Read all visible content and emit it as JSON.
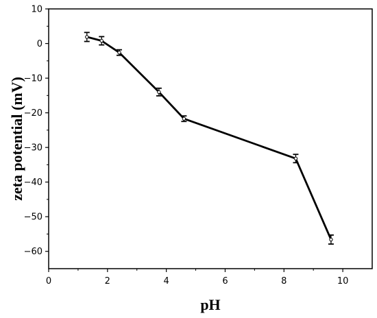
{
  "chart_data": {
    "type": "line",
    "title": "",
    "xlabel": "pH",
    "ylabel": "zeta potential (mV)",
    "xlim": [
      0,
      11
    ],
    "ylim": [
      -65,
      10
    ],
    "x_ticks": [
      0,
      2,
      4,
      6,
      8,
      10
    ],
    "x_tick_labels": [
      "0",
      "2",
      "4",
      "6",
      "8",
      "10"
    ],
    "y_ticks": [
      10,
      0,
      -10,
      -20,
      -30,
      -40,
      -50,
      -60
    ],
    "y_tick_labels": [
      "10",
      "0",
      "−10",
      "−20",
      "−30",
      "−40",
      "−50",
      "−60"
    ],
    "grid": false,
    "legend": "none",
    "series": [
      {
        "x": [
          1.3,
          1.8,
          2.4,
          3.75,
          4.6,
          8.4,
          9.6
        ],
        "y": [
          1.9,
          0.8,
          -2.6,
          -14,
          -21.7,
          -33.2,
          -56.6
        ],
        "error": [
          1.3,
          1.2,
          0.8,
          1.1,
          0.8,
          1.2,
          1.3
        ],
        "color": "#000000"
      }
    ]
  }
}
